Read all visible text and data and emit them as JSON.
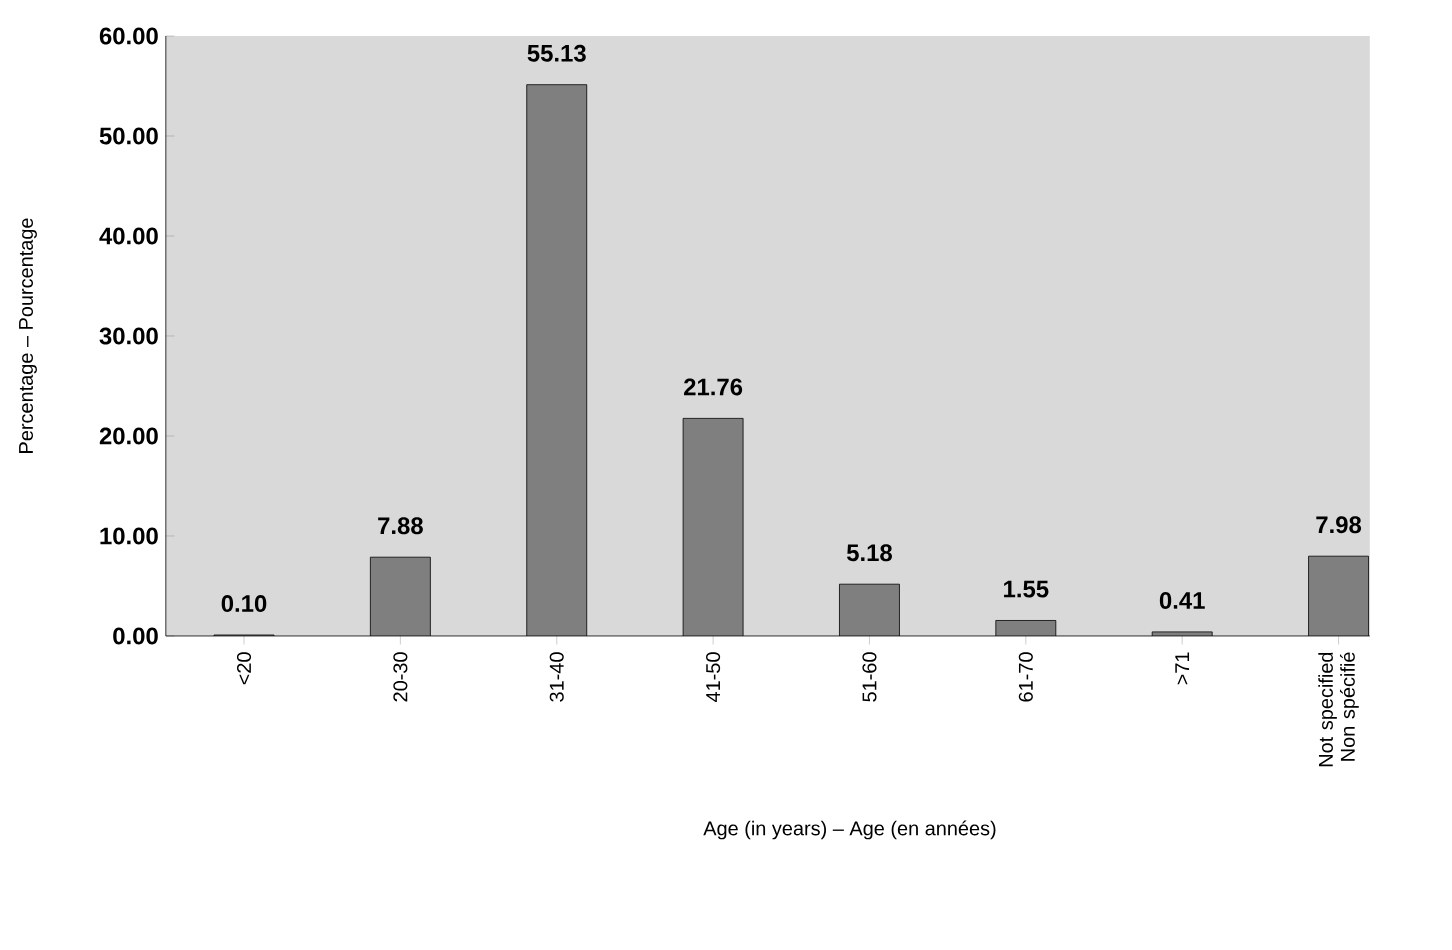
{
  "chart_data": {
    "type": "bar",
    "xlabel": "Age (in years) – Age (en années)",
    "ylabel": "Percentage – Pourcentage",
    "categories": [
      "<20",
      "20-30",
      "31-40",
      "41-50",
      "51-60",
      "61-70",
      ">71",
      "Not specified Non spécifié"
    ],
    "values": [
      0.1,
      7.88,
      55.13,
      21.76,
      5.18,
      1.55,
      0.41,
      7.98
    ],
    "value_labels": [
      "0.10",
      "7.88",
      "55.13",
      "21.76",
      "5.18",
      "1.55",
      "0.41",
      "7.98"
    ],
    "color": "#7f7f7f",
    "ylim": [
      0,
      60
    ],
    "yticks": [
      {
        "value": 0,
        "label": "0.00"
      },
      {
        "value": 10,
        "label": "10.00"
      },
      {
        "value": 20,
        "label": "20.00"
      },
      {
        "value": 30,
        "label": "30.00"
      },
      {
        "value": 40,
        "label": "40.00"
      },
      {
        "value": 50,
        "label": "50.00"
      },
      {
        "value": 60,
        "label": "60.00"
      }
    ],
    "grid": false
  }
}
